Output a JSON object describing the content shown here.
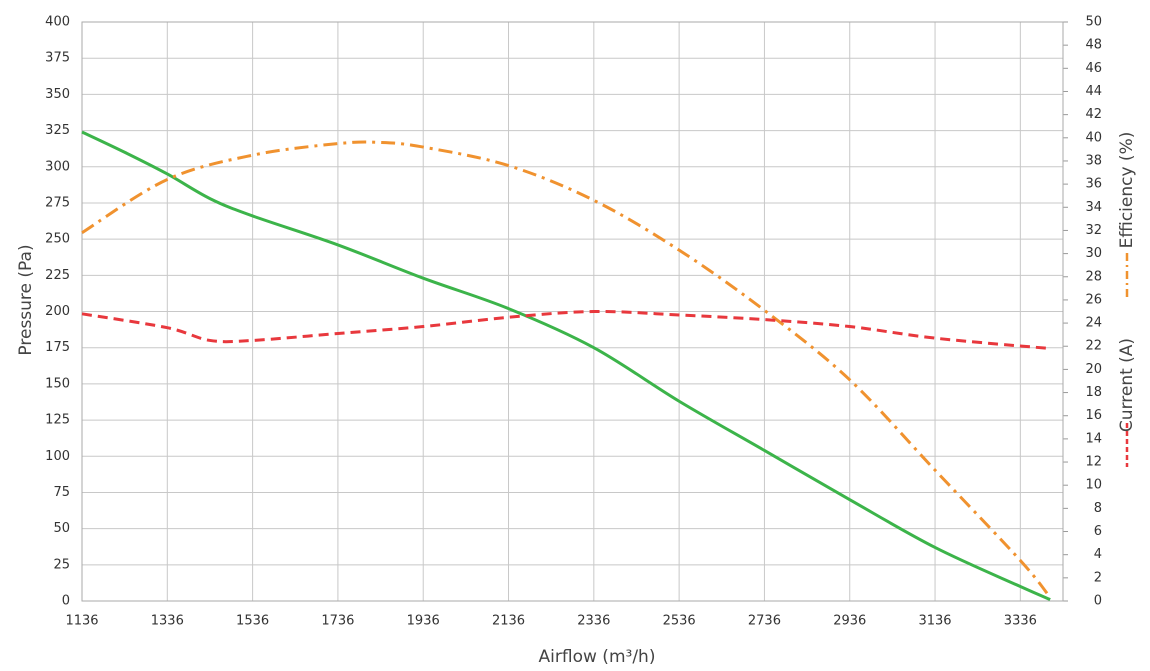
{
  "chart_data": {
    "type": "line",
    "x_label": "Airflow (m³/h)",
    "y_label": "Pressure (Pa)",
    "y2_labels": [
      "Efficiency (%)",
      "Current (A)"
    ],
    "xlim": [
      1136,
      3436
    ],
    "xticks": [
      1136,
      1336,
      1536,
      1736,
      1936,
      2136,
      2336,
      2536,
      2736,
      2936,
      3136,
      3336
    ],
    "ylim": [
      0,
      400
    ],
    "yticks": [
      0,
      25,
      50,
      75,
      100,
      125,
      150,
      175,
      200,
      225,
      250,
      275,
      300,
      325,
      350,
      375,
      400
    ],
    "y2lim": [
      0,
      50
    ],
    "y2ticks": [
      0,
      2,
      4,
      6,
      8,
      10,
      12,
      14,
      16,
      18,
      20,
      22,
      24,
      26,
      28,
      30,
      32,
      34,
      36,
      38,
      40,
      42,
      44,
      46,
      48,
      50
    ],
    "grid": true,
    "series": [
      {
        "color": "#3cb44a",
        "style": "solid",
        "axis": "y",
        "x": [
          1136,
          1236,
          1336,
          1436,
          1536,
          1736,
          1936,
          2136,
          2336,
          2536,
          2736,
          2936,
          3136,
          3336,
          3406
        ],
        "values": [
          324,
          310,
          295,
          278,
          266,
          246,
          223,
          202,
          175,
          138,
          104,
          70,
          37,
          10,
          1
        ]
      },
      {
        "color": "#f0922f",
        "style": "dashdot",
        "axis": "y2",
        "x": [
          1136,
          1336,
          1536,
          1736,
          1836,
          1936,
          2136,
          2336,
          2536,
          2736,
          2936,
          3136,
          3336,
          3406
        ],
        "values": [
          31.8,
          36.4,
          38.5,
          39.5,
          39.6,
          39.2,
          37.6,
          34.6,
          30.3,
          25.1,
          19.1,
          11.3,
          3.5,
          0.3
        ]
      },
      {
        "color": "#e8383d",
        "style": "dashed",
        "axis": "y2",
        "x": [
          1136,
          1336,
          1436,
          1536,
          1736,
          1936,
          2136,
          2336,
          2536,
          2736,
          2936,
          3136,
          3406
        ],
        "values": [
          24.8,
          23.6,
          22.5,
          22.5,
          23.1,
          23.7,
          24.5,
          25,
          24.7,
          24.3,
          23.7,
          22.7,
          21.8
        ]
      }
    ]
  }
}
